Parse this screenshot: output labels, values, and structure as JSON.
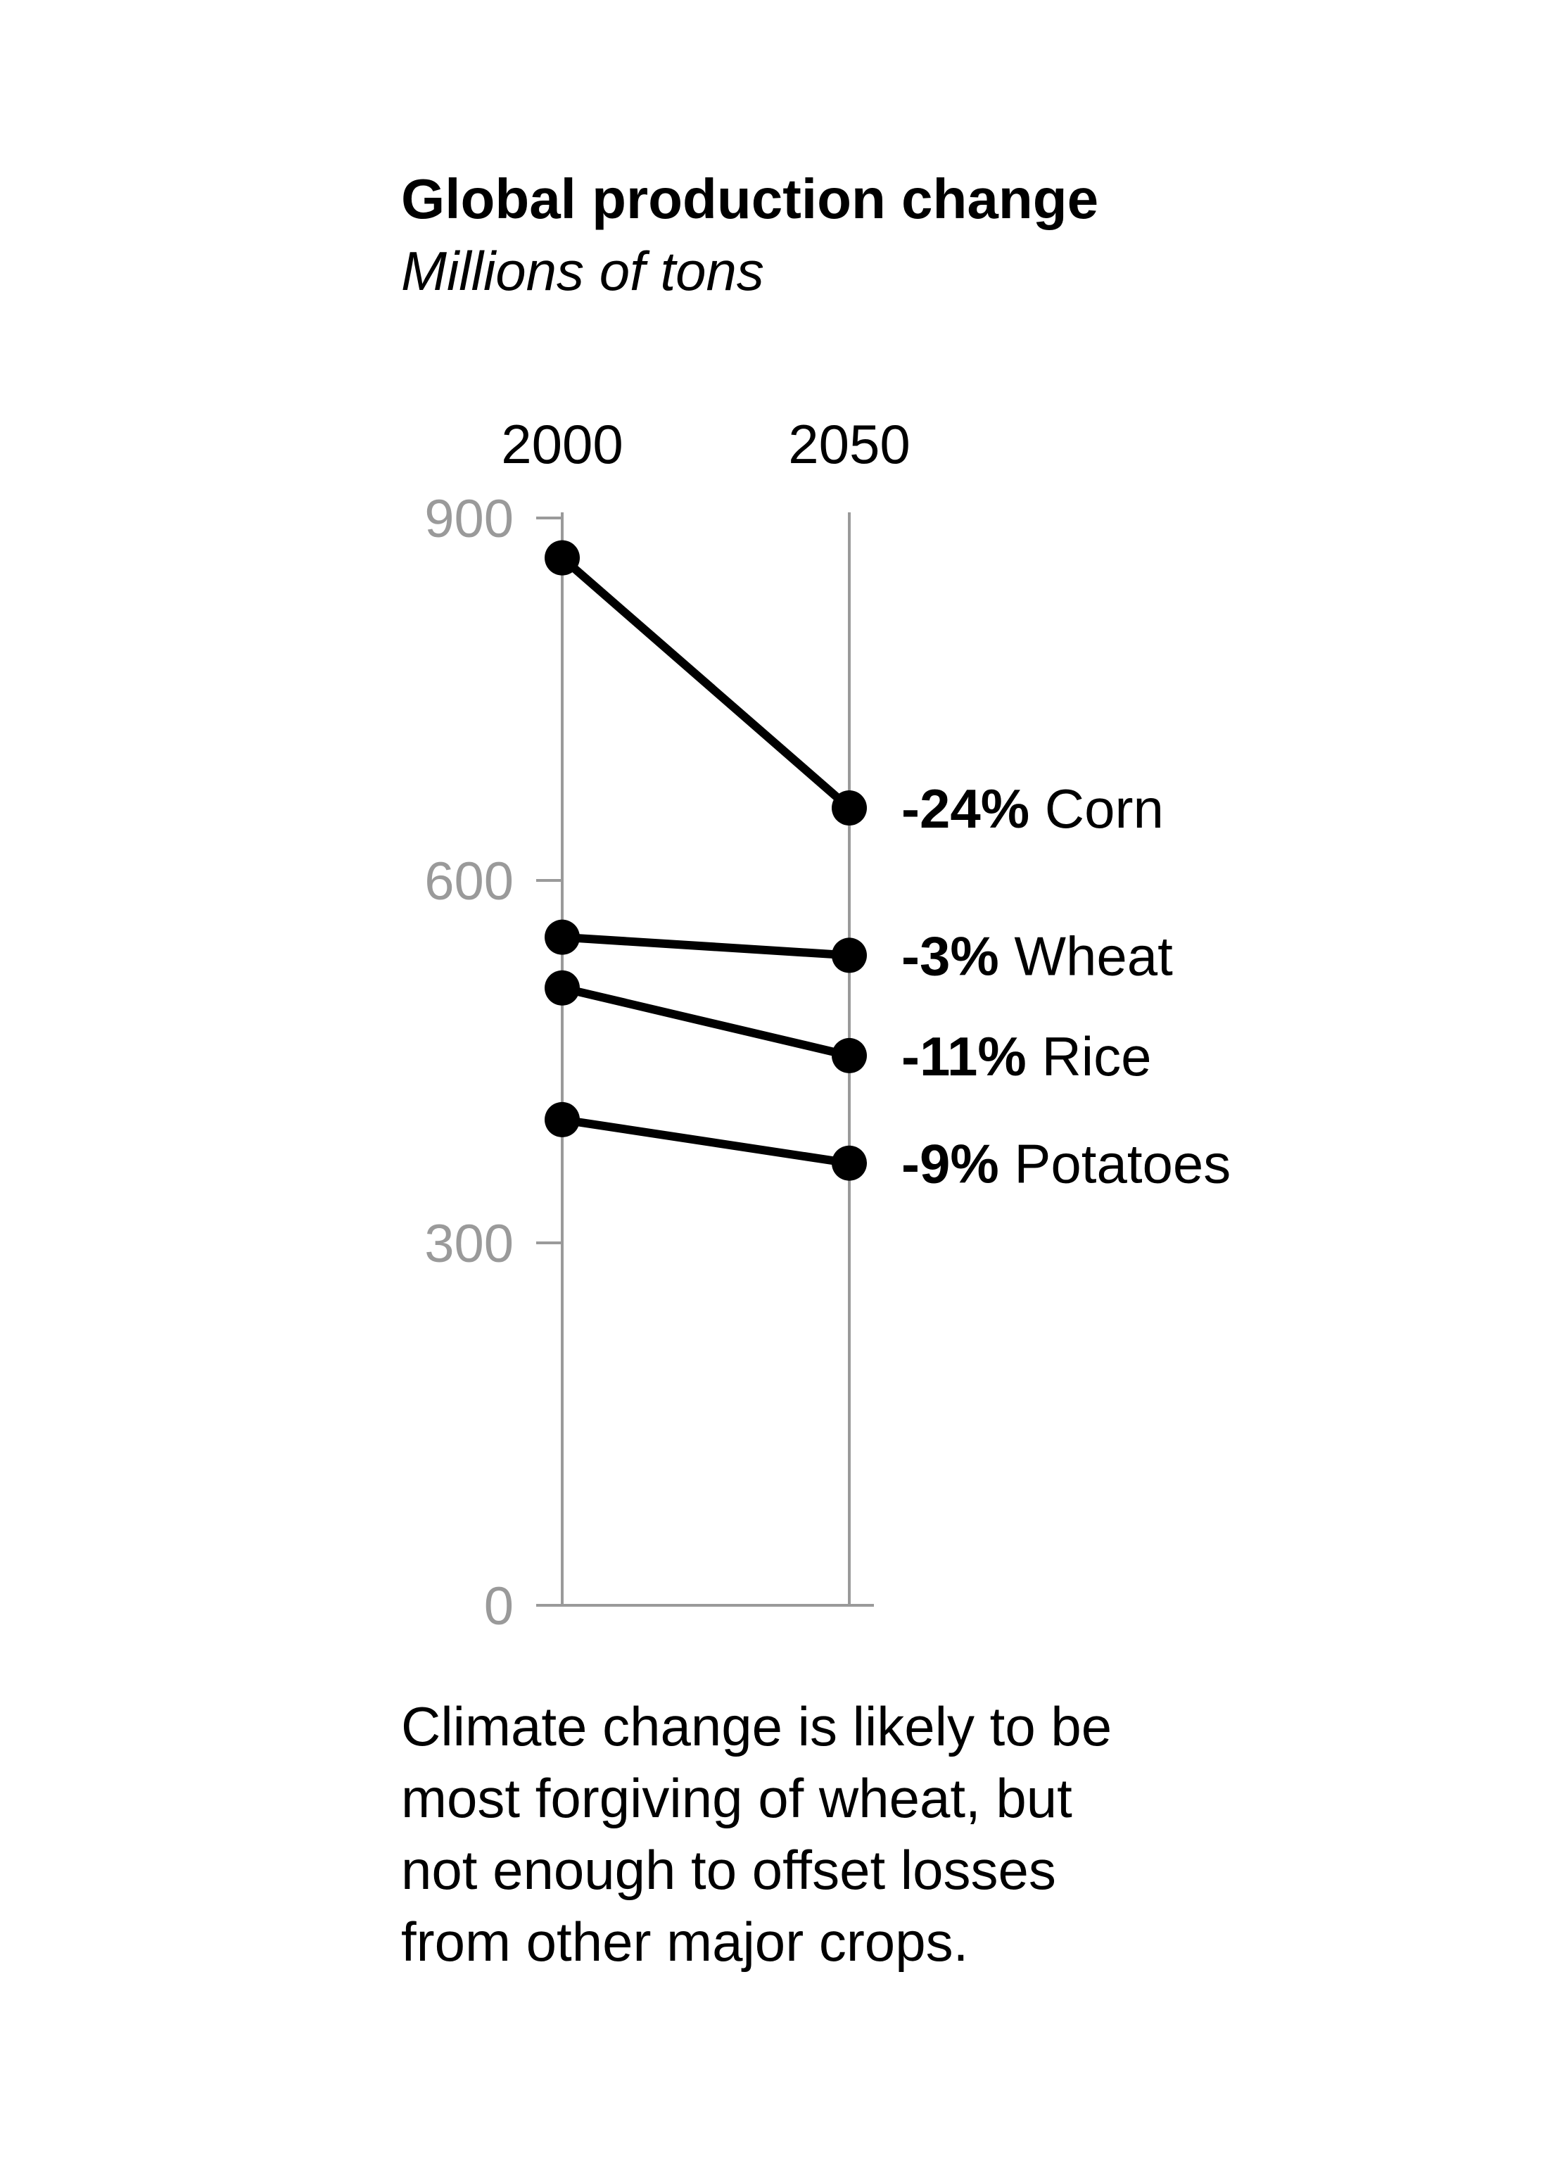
{
  "chart_data": {
    "type": "line",
    "title": "Global production change",
    "subtitle": "Millions of tons",
    "x": [
      "2000",
      "2050"
    ],
    "ylim": [
      0,
      900
    ],
    "yticks": [
      "0",
      "300",
      "600",
      "900"
    ],
    "grid": false,
    "line_color": "#000000",
    "axis_color": "#9a9a9a",
    "series": [
      {
        "name": "Corn",
        "change": "-24%",
        "values": [
          867,
          660
        ]
      },
      {
        "name": "Wheat",
        "change": "-3%",
        "values": [
          553,
          538
        ]
      },
      {
        "name": "Rice",
        "change": "-11%",
        "values": [
          511,
          455
        ]
      },
      {
        "name": "Potatoes",
        "change": "-9%",
        "values": [
          402,
          366
        ]
      }
    ]
  },
  "caption": [
    "Climate change is likely to be",
    "most forgiving of wheat, but",
    "not enough to offset losses",
    "from other major crops."
  ]
}
